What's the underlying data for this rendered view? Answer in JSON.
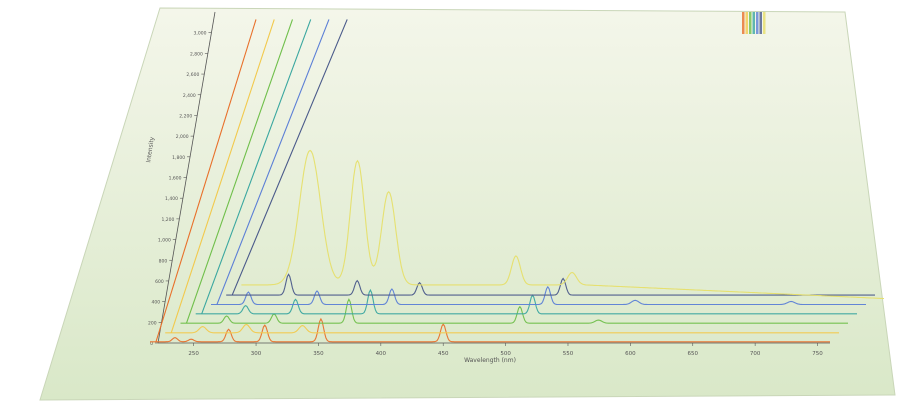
{
  "chart_data": {
    "type": "line",
    "title": "",
    "xlabel": "Wavelength (nm)",
    "ylabel": "Intensity",
    "xlim": [
      215,
      760
    ],
    "ylim": [
      0,
      3200
    ],
    "grid": false,
    "legend_position": "top-right",
    "x_ticks": [
      250,
      300,
      350,
      400,
      450,
      500,
      550,
      600,
      650,
      700,
      750
    ],
    "y_ticks": [
      0,
      200,
      400,
      600,
      800,
      1000,
      1200,
      1400,
      1600,
      1800,
      2000,
      2200,
      2400,
      2600,
      2800,
      3000
    ],
    "series": [
      {
        "color": "#e8702a",
        "offset": 0,
        "baseline": 12,
        "start": 215,
        "peaks": [
          [
            235,
            40,
            3
          ],
          [
            248,
            25,
            3
          ],
          [
            278,
            120,
            3
          ],
          [
            307,
            160,
            3
          ],
          [
            352,
            220,
            3
          ],
          [
            450,
            170,
            3
          ]
        ],
        "rise": 3400
      },
      {
        "color": "#f2c94c",
        "offset": 55,
        "baseline": 10,
        "start": 220,
        "peaks": [
          [
            250,
            60,
            4
          ],
          [
            285,
            80,
            4
          ],
          [
            330,
            70,
            4
          ]
        ],
        "rise": 3400
      },
      {
        "color": "#6fbf4a",
        "offset": 110,
        "baseline": 14,
        "start": 225,
        "peaks": [
          [
            262,
            70,
            3
          ],
          [
            300,
            90,
            3
          ],
          [
            360,
            230,
            3
          ],
          [
            497,
            160,
            3
          ],
          [
            560,
            30,
            4
          ]
        ],
        "rise": 3400
      },
      {
        "color": "#3aa7a0",
        "offset": 165,
        "baseline": 16,
        "start": 230,
        "peaks": [
          [
            270,
            80,
            3
          ],
          [
            310,
            140,
            3
          ],
          [
            370,
            230,
            3
          ],
          [
            500,
            180,
            3
          ]
        ],
        "rise": 3400
      },
      {
        "color": "#5b7fd6",
        "offset": 220,
        "baseline": 18,
        "start": 235,
        "peaks": [
          [
            265,
            120,
            3
          ],
          [
            320,
            130,
            3
          ],
          [
            380,
            150,
            3
          ],
          [
            505,
            170,
            3
          ],
          [
            575,
            40,
            4
          ],
          [
            700,
            30,
            4
          ]
        ],
        "rise": 3400
      },
      {
        "color": "#4a5a8a",
        "offset": 275,
        "baseline": 20,
        "start": 240,
        "peaks": [
          [
            290,
            200,
            3
          ],
          [
            345,
            140,
            3
          ],
          [
            395,
            120,
            3
          ],
          [
            510,
            160,
            3
          ]
        ],
        "rise": 3400
      },
      {
        "color": "#e6df6a",
        "offset": 330,
        "baseline": 30,
        "start": 245,
        "peaks": [
          [
            300,
            1300,
            12
          ],
          [
            338,
            1200,
            8
          ],
          [
            363,
            900,
            8
          ],
          [
            465,
            280,
            5
          ],
          [
            510,
            120,
            5
          ]
        ],
        "rise": 0
      }
    ]
  }
}
